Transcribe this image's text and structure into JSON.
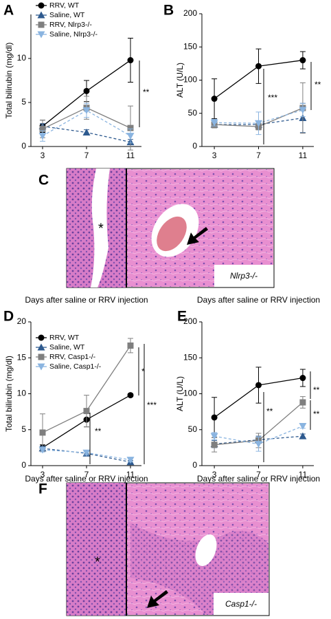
{
  "chart_data": [
    {
      "type": "line",
      "panel": "A",
      "ylabel": "Total bilirubin (mg/dl)",
      "xlabel": "Days after saline or RRV injection",
      "x": [
        3,
        7,
        11
      ],
      "xlim": [
        2,
        12
      ],
      "xticks": [
        3,
        7,
        11
      ],
      "ylim": [
        0,
        15
      ],
      "yticks": [
        0,
        5,
        10
      ],
      "legend": "upper left",
      "series": [
        {
          "name": "RRV, WT",
          "color": "#000000",
          "marker": "circle",
          "dashed": false,
          "values": [
            2.3,
            6.3,
            9.8
          ],
          "errors": [
            0.7,
            1.2,
            2.5
          ]
        },
        {
          "name": "Saline, WT",
          "color": "#2e5a8f",
          "marker": "triangle",
          "dashed": true,
          "values": [
            2.3,
            1.6,
            0.5
          ],
          "errors": [
            0.3,
            0.3,
            0.3
          ]
        },
        {
          "name": "RRV, Nlrp3-/-",
          "color": "#7f7f7f",
          "marker": "square",
          "dashed": false,
          "values": [
            2.0,
            4.4,
            2.1
          ],
          "errors": [
            1.0,
            1.3,
            2.5
          ]
        },
        {
          "name": "Saline, Nlrp3-/-",
          "color": "#8ab4e0",
          "marker": "triangle-down",
          "dashed": true,
          "values": [
            1.2,
            4.1,
            1.2
          ],
          "errors": [
            0.6,
            0.8,
            0.8
          ]
        }
      ],
      "annotations": [
        "**"
      ]
    },
    {
      "type": "line",
      "panel": "B",
      "ylabel": "ALT (U/L)",
      "xlabel": "Days after saline or RRV injection",
      "x": [
        3,
        7,
        11
      ],
      "xlim": [
        2,
        12
      ],
      "xticks": [
        3,
        7,
        11
      ],
      "ylim": [
        0,
        200
      ],
      "yticks": [
        0,
        50,
        100,
        150,
        200
      ],
      "series": [
        {
          "color": "#000000",
          "marker": "circle",
          "dashed": false,
          "values": [
            72,
            121,
            130
          ],
          "errors": [
            30,
            26,
            13
          ]
        },
        {
          "color": "#2e5a8f",
          "marker": "triangle",
          "dashed": true,
          "values": [
            33,
            33,
            43
          ],
          "errors": [
            5,
            5,
            22
          ]
        },
        {
          "color": "#7f7f7f",
          "marker": "square",
          "dashed": false,
          "values": [
            33,
            30,
            58
          ],
          "errors": [
            5,
            5,
            38
          ]
        },
        {
          "color": "#8ab4e0",
          "marker": "triangle-down",
          "dashed": true,
          "values": [
            36,
            35,
            55
          ],
          "errors": [
            5,
            17,
            10
          ]
        }
      ],
      "annotations": [
        "***",
        "**"
      ]
    },
    {
      "type": "line",
      "panel": "D",
      "ylabel": "Total bilirubin (mg/dl)",
      "xlabel": "Days after saline or RRV injection",
      "x": [
        3,
        7,
        11
      ],
      "xlim": [
        2,
        12
      ],
      "xticks": [
        3,
        7,
        11
      ],
      "ylim": [
        0,
        20
      ],
      "yticks": [
        0,
        5,
        10,
        15,
        20
      ],
      "legend": "upper left",
      "series": [
        {
          "name": "RRV, WT",
          "color": "#000000",
          "marker": "circle",
          "dashed": false,
          "values": [
            2.5,
            6.4,
            9.8
          ],
          "errors": [
            0.4,
            1.0,
            0.2
          ]
        },
        {
          "name": "Saline, WT",
          "color": "#2e5a8f",
          "marker": "triangle",
          "dashed": true,
          "values": [
            2.4,
            1.7,
            0.5
          ],
          "errors": [
            0.3,
            0.3,
            0.2
          ]
        },
        {
          "name": "RRV, Casp1-/-",
          "color": "#7f7f7f",
          "marker": "square",
          "dashed": false,
          "values": [
            4.6,
            7.6,
            16.7
          ],
          "errors": [
            2.6,
            2.2,
            1.0
          ]
        },
        {
          "name": "Saline, Casp1-/-",
          "color": "#8ab4e0",
          "marker": "triangle-down",
          "dashed": true,
          "values": [
            2.2,
            1.8,
            0.8
          ],
          "errors": [
            0.3,
            0.3,
            0.3
          ]
        }
      ],
      "annotations": [
        "**",
        "*",
        "***"
      ]
    },
    {
      "type": "line",
      "panel": "E",
      "ylabel": "ALT (U/L)",
      "xlabel": "Days after saline or RRV injection",
      "x": [
        3,
        7,
        11
      ],
      "xlim": [
        2,
        12
      ],
      "xticks": [
        3,
        7,
        11
      ],
      "ylim": [
        0,
        200
      ],
      "yticks": [
        0,
        50,
        100,
        150,
        200
      ],
      "series": [
        {
          "color": "#000000",
          "marker": "circle",
          "dashed": false,
          "values": [
            67,
            112,
            122
          ],
          "errors": [
            28,
            25,
            12
          ]
        },
        {
          "color": "#2e5a8f",
          "marker": "triangle",
          "dashed": true,
          "values": [
            30,
            36,
            41
          ],
          "errors": [
            5,
            5,
            3
          ]
        },
        {
          "color": "#7f7f7f",
          "marker": "square",
          "dashed": false,
          "values": [
            29,
            35,
            88
          ],
          "errors": [
            10,
            10,
            8
          ]
        },
        {
          "color": "#8ab4e0",
          "marker": "triangle-down",
          "dashed": true,
          "values": [
            41,
            30,
            55
          ],
          "errors": [
            5,
            10,
            3
          ]
        }
      ],
      "annotations": [
        "**",
        "**",
        "**"
      ]
    }
  ],
  "histology": [
    {
      "panel": "C",
      "asterisk": "*",
      "genotype": "Nlrp3-/-"
    },
    {
      "panel": "F",
      "asterisk": "*",
      "genotype": "Casp1-/-"
    }
  ]
}
